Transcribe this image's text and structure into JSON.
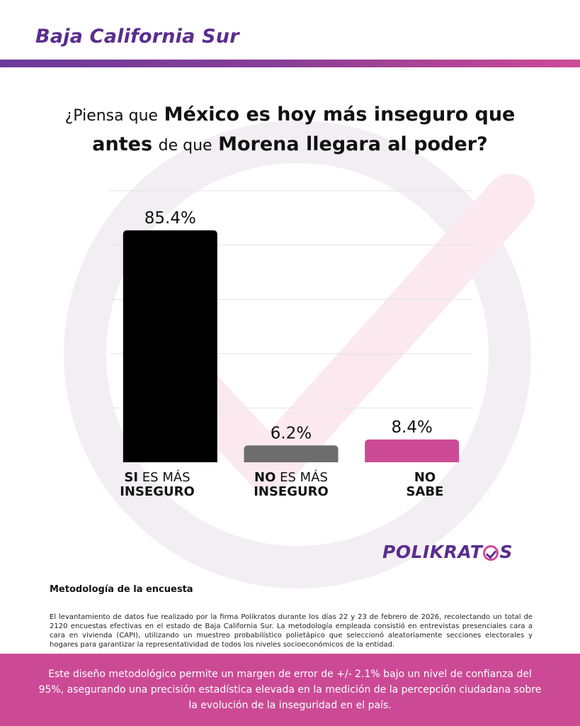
{
  "header": {
    "region": "Baja California Sur"
  },
  "question": {
    "p1": "¿Piensa que",
    "p2": "México es hoy más inseguro que",
    "p3": "antes",
    "p4": "de que",
    "p5": "Morena llegara al poder?"
  },
  "chart_data": {
    "type": "bar",
    "ylim": [
      0,
      100
    ],
    "grid": true,
    "categories": [
      "SI ES MÁS INSEGURO",
      "NO ES MÁS INSEGURO",
      "NO SABE"
    ],
    "values": [
      85.4,
      6.2,
      8.4
    ],
    "value_labels": [
      "85.4%",
      "6.2%",
      "8.4%"
    ],
    "colors": [
      "#000000",
      "#6d6d6d",
      "#cc4a95"
    ]
  },
  "categories_display": [
    {
      "bold1": "SI",
      "normal": " ES MÁS",
      "bold2": "INSEGURO"
    },
    {
      "bold1": "NO",
      "normal": " ES MÁS",
      "bold2": "INSEGURO"
    },
    {
      "bold1": "NO",
      "normal": "",
      "bold2": "SABE"
    }
  ],
  "logo": {
    "left": "POLIKRAT",
    "right": "S"
  },
  "methodology": {
    "title": "Metodología de la encuesta",
    "text": "El levantamiento de datos fue realizado por la firma Polikratos durante los días 22 y 23 de febrero de 2026, recolectando un total de 2120 encuestas efectivas en el estado de Baja California Sur. La metodología empleada consistió en entrevistas presenciales cara a cara en vivienda (CAPI), utilizando un muestreo probabilístico polietápico que seleccionó aleatoriamente secciones electorales y hogares para garantizar la representatividad de todos los niveles socioeconómicos de la entidad."
  },
  "footer": {
    "text": "Este diseño metodológico permite un margen de error de +/- 2.1% bajo un nivel de confianza del 95%, asegurando una precisión estadística elevada en la medición de la percepción ciudadana sobre la evolución de la inseguridad en el país."
  }
}
